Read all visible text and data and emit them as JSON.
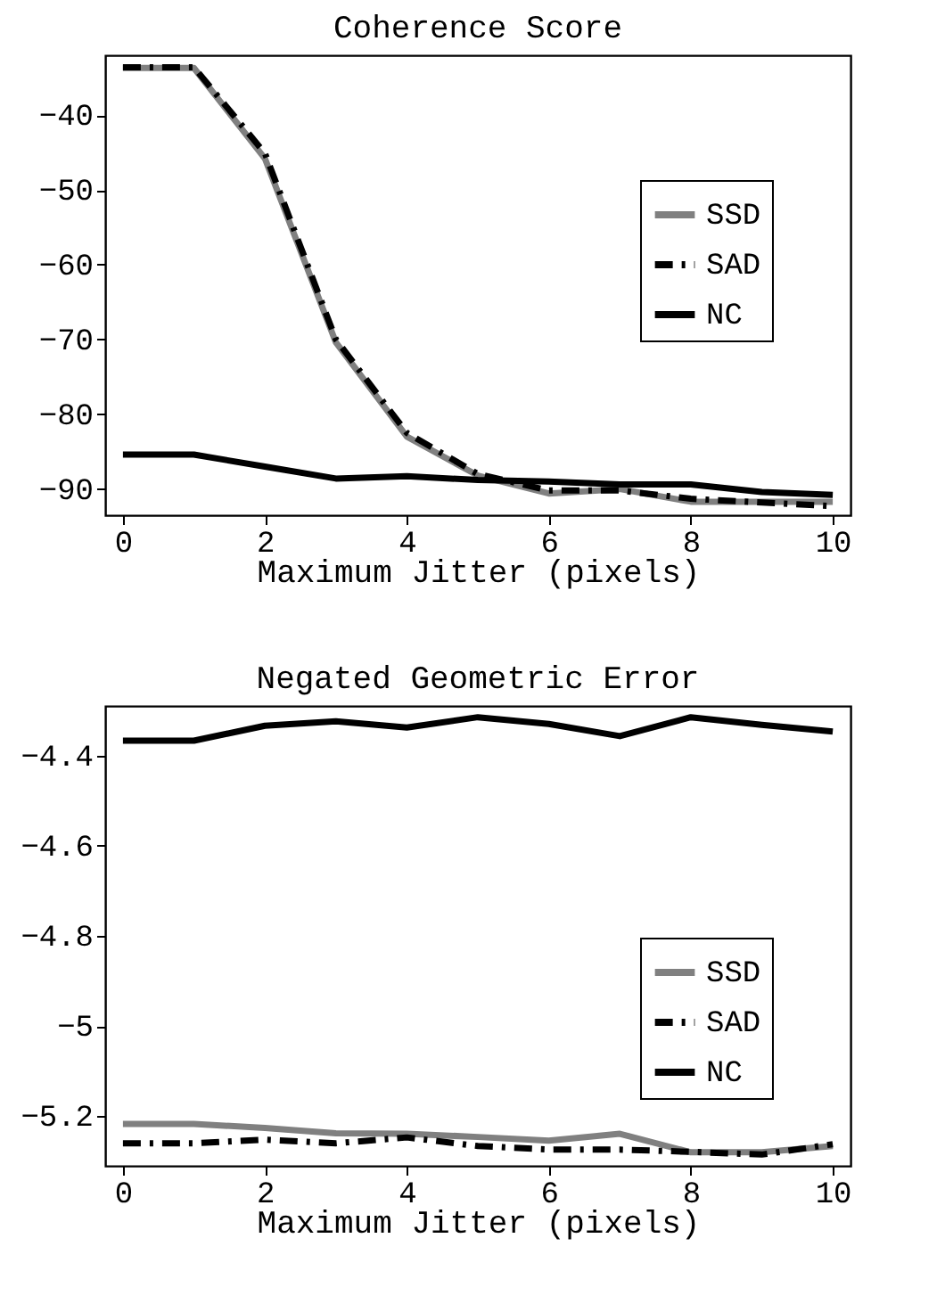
{
  "chart_data": [
    {
      "type": "line",
      "title": "Coherence Score",
      "xlabel": "Maximum Jitter (pixels)",
      "x": [
        0,
        1,
        2,
        3,
        4,
        5,
        6,
        7,
        8,
        9,
        10
      ],
      "xlim": [
        -0.25,
        10.25
      ],
      "xticks": [
        0,
        2,
        4,
        6,
        8,
        10
      ],
      "ylim": [
        -93.5,
        -32
      ],
      "yticks": [
        -90,
        -80,
        -70,
        -60,
        -50,
        -40
      ],
      "grid": false,
      "legend": "right",
      "marker": "none",
      "series": [
        {
          "name": "SSD",
          "color": "#808080",
          "line_style": "solid",
          "values": [
            -33.7,
            -33.7,
            -45.8,
            -70.4,
            -83,
            -88.2,
            -90.6,
            -90,
            -91.7,
            -91.7,
            -91.7
          ]
        },
        {
          "name": "SAD",
          "color": "#000000",
          "line_style": "dashed",
          "values": [
            -33.6,
            -33.6,
            -45.1,
            -70,
            -82.5,
            -88,
            -90.2,
            -90.2,
            -91.3,
            -91.8,
            -92.3
          ]
        },
        {
          "name": "NC",
          "color": "#000000",
          "line_style": "solid",
          "values": [
            -85.4,
            -85.4,
            -87,
            -88.6,
            -88.3,
            -88.8,
            -89,
            -89.4,
            -89.4,
            -90.4,
            -90.8
          ]
        }
      ]
    },
    {
      "type": "line",
      "title": "Negated Geometric Error",
      "xlabel": "Maximum Jitter (pixels)",
      "x": [
        0,
        1,
        2,
        3,
        4,
        5,
        6,
        7,
        8,
        9,
        10
      ],
      "xlim": [
        -0.25,
        10.25
      ],
      "xticks": [
        0,
        2,
        4,
        6,
        8,
        10
      ],
      "ylim": [
        -5.31,
        -4.29
      ],
      "yticks": [
        -5.2,
        -5,
        -4.8,
        -4.6,
        -4.4
      ],
      "grid": false,
      "legend": "right",
      "marker": "none",
      "series": [
        {
          "name": "SSD",
          "color": "#808080",
          "line_style": "solid",
          "values": [
            -5.217,
            -5.217,
            -5.226,
            -5.238,
            -5.239,
            -5.246,
            -5.254,
            -5.239,
            -5.28,
            -5.28,
            -5.266
          ]
        },
        {
          "name": "SAD",
          "color": "#000000",
          "line_style": "dashed",
          "values": [
            -5.26,
            -5.26,
            -5.252,
            -5.26,
            -5.247,
            -5.266,
            -5.274,
            -5.274,
            -5.279,
            -5.285,
            -5.262
          ]
        },
        {
          "name": "NC",
          "color": "#000000",
          "line_style": "solid",
          "values": [
            -4.367,
            -4.367,
            -4.334,
            -4.324,
            -4.338,
            -4.315,
            -4.33,
            -4.357,
            -4.315,
            -4.332,
            -4.347
          ]
        }
      ]
    }
  ]
}
